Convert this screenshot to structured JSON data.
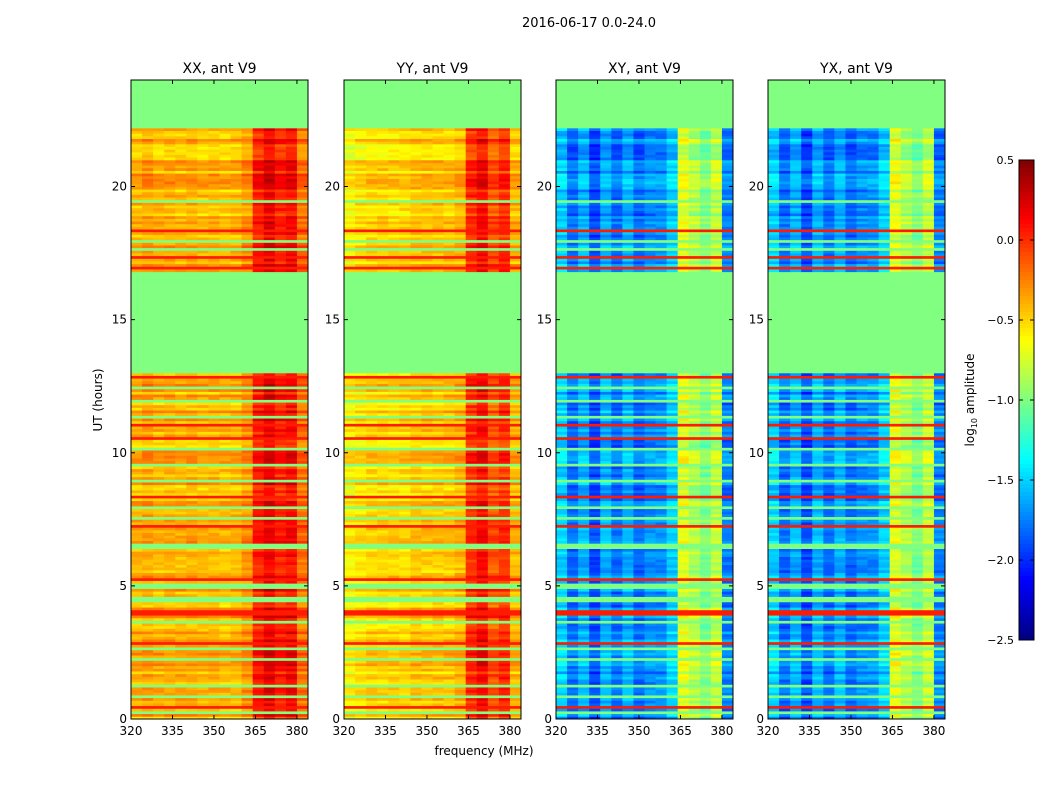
{
  "chart_data": {
    "type": "heatmap",
    "title": "2016-06-17 0.0-24.0",
    "xlabel": "frequency (MHz)",
    "ylabel": "UT (hours)",
    "xlim": [
      320,
      384
    ],
    "ylim": [
      0,
      24
    ],
    "xticks": [
      320,
      335,
      350,
      365,
      380
    ],
    "yticks": [
      0,
      5,
      10,
      15,
      20
    ],
    "colorbar": {
      "label_main": "log",
      "label_sub": "10",
      "label_rest": " amplitude",
      "colormap": "jet",
      "range": [
        -2.5,
        0.5
      ],
      "ticks": [
        "0.5",
        "0.0",
        "−0.5",
        "−1.0",
        "−1.5",
        "−2.0",
        "−2.5"
      ],
      "tick_values": [
        0.5,
        0.0,
        -0.5,
        -1.0,
        -1.5,
        -2.0,
        -2.5
      ]
    },
    "freq_bin_edges_start": 320,
    "freq_bin_width": 4,
    "time_bin_width": 0.1,
    "flagged_value": -1.0,
    "flagged_time_ranges": [
      [
        13.0,
        16.85
      ],
      [
        22.2,
        24.0
      ]
    ],
    "flagged_time_lines": [
      0.3,
      0.9,
      1.3,
      2.2,
      2.6,
      3.6,
      4.5,
      5.0,
      6.5,
      7.6,
      8.0,
      9.0,
      9.6,
      10.2,
      11.4,
      12.0,
      12.5,
      17.7,
      18.0,
      19.5,
      21.6
    ],
    "rfi_time_lines": [
      0.5,
      1.6,
      2.9,
      4.0,
      5.3,
      7.3,
      8.4,
      10.6,
      11.1,
      12.9,
      17.0,
      17.35,
      18.4,
      22.95
    ],
    "rfi_line_value": 0.05,
    "panels": [
      {
        "title": "XX, ant V9",
        "freq_profile": [
          -0.4,
          -0.35,
          -0.4,
          -0.38,
          -0.4,
          -0.38,
          -0.42,
          -0.4,
          -0.42,
          -0.4,
          -0.3,
          0.05,
          0.18,
          0.05,
          0.12,
          -0.2
        ]
      },
      {
        "title": "YY, ant V9",
        "freq_profile": [
          -0.6,
          -0.55,
          -0.5,
          -0.5,
          -0.5,
          -0.5,
          -0.45,
          -0.45,
          -0.45,
          -0.45,
          -0.4,
          0.0,
          0.12,
          -0.1,
          0.0,
          -0.4
        ]
      },
      {
        "title": "XY, ant V9",
        "freq_profile": [
          -1.5,
          -1.8,
          -1.6,
          -1.9,
          -1.6,
          -1.8,
          -1.6,
          -1.8,
          -1.7,
          -1.7,
          -1.5,
          -0.7,
          -0.85,
          -1.0,
          -0.8,
          -1.75
        ]
      },
      {
        "title": "YX, ant V9",
        "freq_profile": [
          -1.5,
          -1.8,
          -1.6,
          -1.9,
          -1.6,
          -1.8,
          -1.6,
          -1.8,
          -1.7,
          -1.7,
          -1.5,
          -0.7,
          -0.85,
          -1.0,
          -0.8,
          -1.75
        ]
      }
    ]
  }
}
